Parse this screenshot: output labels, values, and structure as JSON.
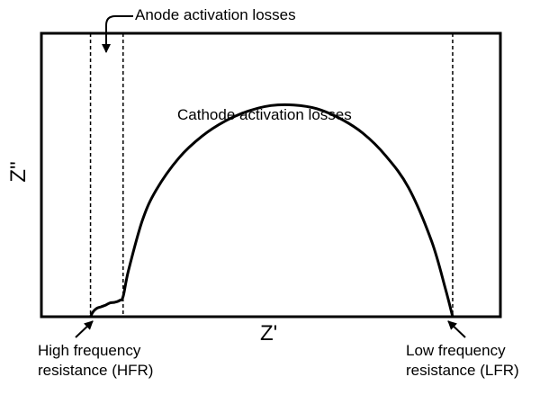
{
  "chart_data": {
    "type": "line",
    "title": "",
    "xlabel": "Z'",
    "ylabel": "Z\"",
    "xlim": [
      0,
      100
    ],
    "ylim": [
      0,
      100
    ],
    "grid": false,
    "legend": "none",
    "axis_ticks": false,
    "series": [
      {
        "x": [
          10.7,
          11.2,
          12.0,
          13.0,
          14.0,
          15.0,
          16.0,
          17.0,
          17.8,
          19.0,
          22.0,
          25.0,
          30.0,
          35.0,
          40.0,
          45.0,
          50.0,
          55.0,
          60.0,
          65.0,
          70.0,
          75.0,
          80.0,
          85.0,
          88.0,
          89.6
        ],
        "y": [
          0.0,
          1.6,
          2.9,
          3.5,
          4.1,
          4.9,
          5.1,
          5.7,
          7.1,
          16.5,
          34.0,
          44.7,
          56.1,
          63.7,
          69.0,
          72.5,
          74.5,
          74.7,
          73.4,
          70.0,
          64.8,
          56.8,
          45.5,
          26.7,
          10.0,
          0.0
        ]
      }
    ],
    "reference_lines": [
      {
        "axis": "x",
        "value": 10.7,
        "style": "dashed"
      },
      {
        "axis": "x",
        "value": 17.8,
        "style": "dashed"
      },
      {
        "axis": "x",
        "value": 89.6,
        "style": "dashed"
      }
    ],
    "annotations": {
      "anode": "Anode activation losses",
      "cathode": "Cathode activation losses",
      "hfr_line1": "High frequency",
      "hfr_line2": "resistance (HFR)",
      "lfr_line1": "Low frequency",
      "lfr_line2": "resistance (LFR)"
    }
  }
}
